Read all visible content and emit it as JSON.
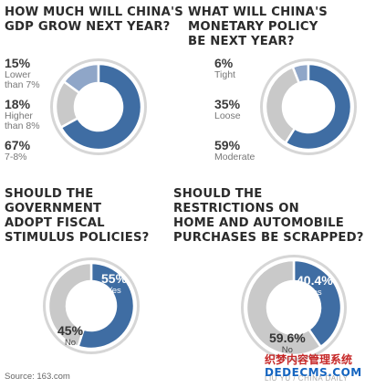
{
  "chart_data": [
    {
      "type": "pie",
      "title": "HOW MUCH WILL CHINA'S GDP GROW NEXT YEAR?",
      "slices": [
        {
          "label": "Lower than 7%",
          "value": 15,
          "pct": "15%",
          "lines": [
            "Lower",
            "than 7%"
          ],
          "color": "#8fa6c8"
        },
        {
          "label": "Higher than 8%",
          "value": 18,
          "pct": "18%",
          "lines": [
            "Higher",
            "than 8%"
          ],
          "color": "#c9c9c9"
        },
        {
          "label": "7-8%",
          "value": 67,
          "pct": "67%",
          "lines": [
            "7-8%"
          ],
          "color": "#3f6da3"
        }
      ]
    },
    {
      "type": "pie",
      "title": "WHAT WILL CHINA'S MONETARY POLICY BE NEXT YEAR?",
      "slices": [
        {
          "label": "Tight",
          "value": 6,
          "pct": "6%",
          "lines": [
            "Tight"
          ],
          "color": "#8fa6c8"
        },
        {
          "label": "Loose",
          "value": 35,
          "pct": "35%",
          "lines": [
            "Loose"
          ],
          "color": "#c9c9c9"
        },
        {
          "label": "Moderate",
          "value": 59,
          "pct": "59%",
          "lines": [
            "Moderate"
          ],
          "color": "#3f6da3"
        }
      ]
    },
    {
      "type": "pie",
      "title": "SHOULD THE GOVERNMENT ADOPT FISCAL STIMULUS POLICIES?",
      "slices": [
        {
          "label": "Yes",
          "value": 55,
          "pct": "55%",
          "lines": [
            "Yes"
          ],
          "color": "#3f6da3"
        },
        {
          "label": "No",
          "value": 45,
          "pct": "45%",
          "lines": [
            "No"
          ],
          "color": "#c9c9c9"
        }
      ]
    },
    {
      "type": "pie",
      "title": "SHOULD THE RESTRICTIONS ON HOME AND AUTOMOBILE PURCHASES BE SCRAPPED?",
      "slices": [
        {
          "label": "Yes",
          "value": 40.4,
          "pct": "40.4%",
          "lines": [
            "Yes"
          ],
          "color": "#3f6da3"
        },
        {
          "label": "No",
          "value": 59.6,
          "pct": "59.6%",
          "lines": [
            "No"
          ],
          "color": "#c9c9c9"
        }
      ]
    }
  ],
  "titles": [
    [
      "HOW MUCH WILL CHINA'S",
      "GDP GROW NEXT YEAR?"
    ],
    [
      "WHAT WILL CHINA'S",
      "MONETARY POLICY",
      "BE NEXT YEAR?"
    ],
    [
      "SHOULD THE",
      "GOVERNMENT",
      "ADOPT FISCAL",
      "STIMULUS POLICIES?"
    ],
    [
      "SHOULD THE",
      "RESTRICTIONS ON",
      "HOME AND AUTOMOBILE",
      "PURCHASES BE SCRAPPED?"
    ]
  ],
  "source": "Source: 163.com",
  "credit": "LIU YU / CHINA DAILY",
  "watermark": {
    "line1": "织梦内容管理系统",
    "line2": "DEDECMS.COM"
  }
}
